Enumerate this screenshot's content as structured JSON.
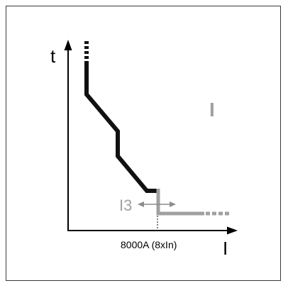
{
  "diagram": {
    "y_axis_label": "t",
    "x_axis_label": "I",
    "region_label": "I",
    "setting_label": "I3",
    "x_tick_label": "8000A (8xIn)",
    "colors": {
      "frame": "#3a3a3a",
      "axes": "#000000",
      "trip_curve": "#111111",
      "instantaneous_curve": "#a0a0a0",
      "arrow": "#8c8c8c",
      "region_label": "#a0a0a0",
      "setting_label": "#a0a0a0"
    }
  }
}
